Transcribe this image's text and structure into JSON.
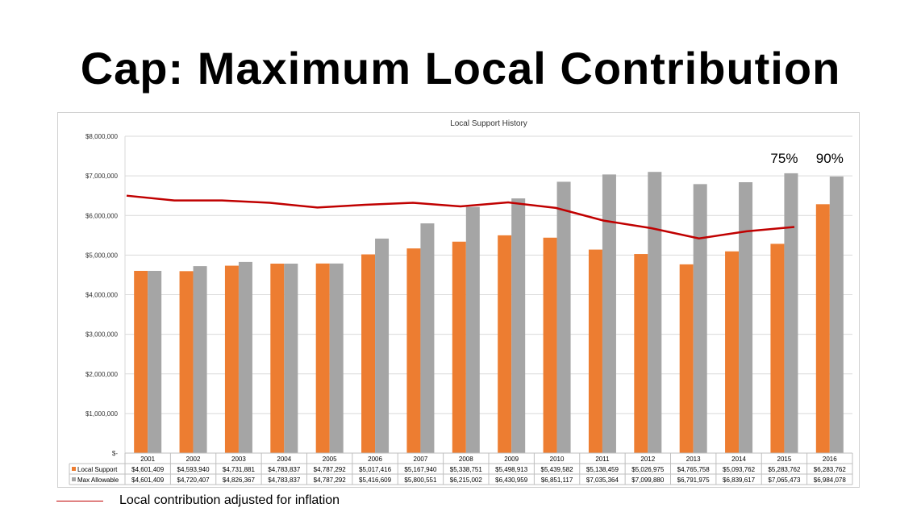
{
  "title": "Cap: Maximum Local Contribution",
  "chart_data": {
    "type": "bar",
    "title": "Local Support History",
    "categories": [
      "2001",
      "2002",
      "2003",
      "2004",
      "2005",
      "2006",
      "2007",
      "2008",
      "2009",
      "2010",
      "2011",
      "2012",
      "2013",
      "2014",
      "2015",
      "2016"
    ],
    "ylim": [
      0,
      8000000
    ],
    "yticks": [
      "$-",
      "$1,000,000",
      "$2,000,000",
      "$3,000,000",
      "$4,000,000",
      "$5,000,000",
      "$6,000,000",
      "$7,000,000",
      "$8,000,000"
    ],
    "series": [
      {
        "name": "Local Support",
        "color": "#ed7d31",
        "values": [
          4601409,
          4593940,
          4731881,
          4783837,
          4787292,
          5017416,
          5167940,
          5338751,
          5498913,
          5439582,
          5138459,
          5026975,
          4765758,
          5093762,
          5283762,
          6283762
        ],
        "labels": [
          "$4,601,409",
          "$4,593,940",
          "$4,731,881",
          "$4,783,837",
          "$4,787,292",
          "$5,017,416",
          "$5,167,940",
          "$5,338,751",
          "$5,498,913",
          "$5,439,582",
          "$5,138,459",
          "$5,026,975",
          "$4,765,758",
          "$5,093,762",
          "$5,283,762",
          "$6,283,762"
        ]
      },
      {
        "name": "Max Allowable",
        "color": "#a5a5a5",
        "values": [
          4601409,
          4720407,
          4826367,
          4783837,
          4787292,
          5416609,
          5800551,
          6215002,
          6430959,
          6851117,
          7035364,
          7099880,
          6791975,
          6839617,
          7065473,
          6984078
        ],
        "labels": [
          "$4,601,409",
          "$4,720,407",
          "$4,826,367",
          "$4,783,837",
          "$4,787,292",
          "$5,416,609",
          "$5,800,551",
          "$6,215,002",
          "$6,430,959",
          "$6,851,117",
          "$7,035,364",
          "$7,099,880",
          "$6,791,975",
          "$6,839,617",
          "$7,065,473",
          "$6,984,078"
        ]
      }
    ],
    "line_series": {
      "name": "Local contribution adjusted for inflation",
      "color": "#c00000",
      "values": [
        6500000,
        6380000,
        6380000,
        6320000,
        6200000,
        6270000,
        6320000,
        6230000,
        6330000,
        6190000,
        5870000,
        5680000,
        5420000,
        5600000,
        5710000
      ]
    },
    "annotations": [
      {
        "category": "2015",
        "text": "75%"
      },
      {
        "category": "2016",
        "text": "90%"
      }
    ]
  }
}
